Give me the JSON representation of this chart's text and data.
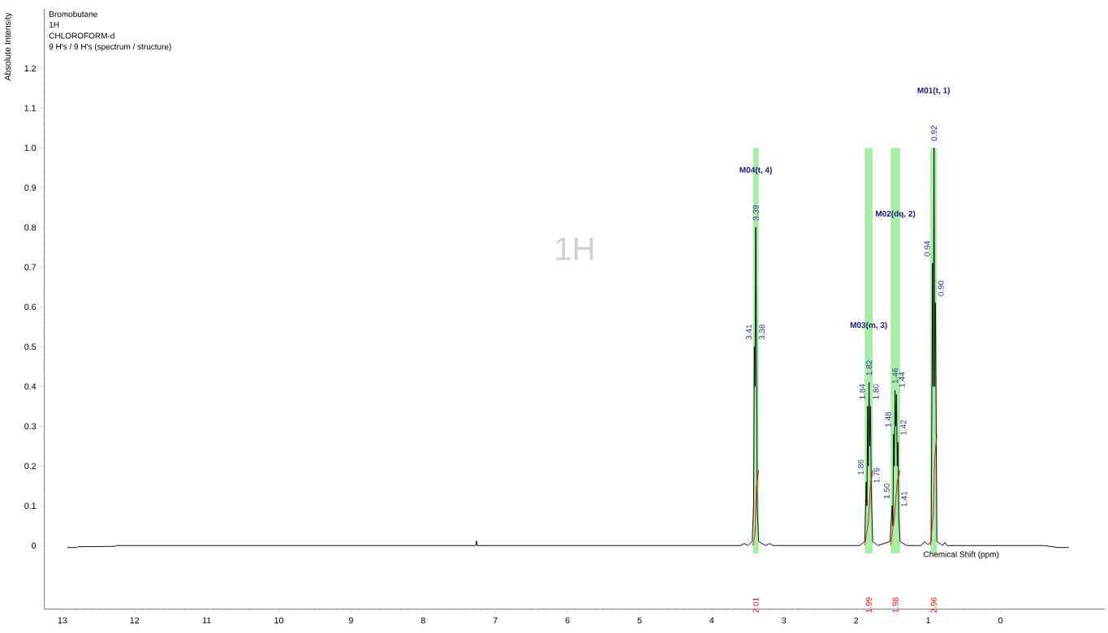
{
  "chart_data": {
    "type": "line",
    "xlabel": "Chemical Shift (ppm)",
    "ylabel": "Absolute Intensity",
    "xlim": [
      13.25,
      -1.45
    ],
    "xticks": [
      13,
      12,
      11,
      10,
      9,
      8,
      7,
      6,
      5,
      4,
      3,
      2,
      1,
      0
    ],
    "ylim": [
      -0.16,
      1.35
    ],
    "yticks": [
      0,
      0.1,
      0.2,
      0.3,
      0.4,
      0.5,
      0.6,
      0.7,
      0.8,
      0.9,
      {
        "value": 1,
        "label": "1.0"
      },
      1.1,
      1.2
    ],
    "series": [
      {
        "color": "#000000",
        "x": [
          12.93,
          12.8,
          12.79,
          12.27,
          12.25,
          7.3,
          7.27,
          7.26,
          7.25,
          3.6,
          3.55,
          3.5,
          3.44,
          3.42,
          3.41,
          3.4,
          3.39,
          3.38,
          3.37,
          3.35,
          3.25,
          3.2,
          3.15,
          1.95,
          1.88,
          1.86,
          1.85,
          1.84,
          1.83,
          1.82,
          1.81,
          1.8,
          1.79,
          1.77,
          1.7,
          1.53,
          1.5,
          1.49,
          1.48,
          1.47,
          1.46,
          1.45,
          1.44,
          1.43,
          1.42,
          1.41,
          1.39,
          1.3,
          1.1,
          1.05,
          1.0,
          0.96,
          0.94,
          0.93,
          0.92,
          0.91,
          0.9,
          0.88,
          0.8,
          0.77,
          0.74,
          -0.6,
          -0.8,
          -0.95
        ],
        "values": [
          -0.005,
          -0.005,
          -0.003,
          -0.002,
          0,
          0,
          0,
          0.012,
          0,
          0,
          0.005,
          0,
          0.01,
          0.1,
          0.5,
          0.4,
          0.8,
          0.5,
          0.1,
          0.01,
          0,
          0.005,
          0,
          0,
          0.01,
          0.16,
          0.1,
          0.35,
          0.2,
          0.41,
          0.25,
          0.35,
          0.14,
          0.01,
          0,
          0.01,
          0.1,
          0.05,
          0.28,
          0.2,
          0.39,
          0.3,
          0.38,
          0.2,
          0.26,
          0.08,
          0.01,
          0,
          0,
          0.01,
          0.002,
          0.01,
          0.71,
          0.4,
          1.0,
          0.4,
          0.61,
          0.01,
          0,
          0.008,
          0,
          0,
          -0.005,
          -0.005
        ]
      },
      {
        "color": "#ff0000",
        "x": [
          3.43,
          3.4,
          3.38,
          3.35
        ],
        "values": [
          0,
          0.03,
          0.15,
          0.19
        ]
      },
      {
        "color": "#ff0000",
        "x": [
          1.88,
          1.83,
          1.8,
          1.77
        ],
        "values": [
          0,
          0.06,
          0.15,
          0.19
        ]
      },
      {
        "color": "#ff0000",
        "x": [
          1.52,
          1.47,
          1.43,
          1.39
        ],
        "values": [
          0,
          0.07,
          0.16,
          0.19
        ]
      },
      {
        "color": "#ff0000",
        "x": [
          0.97,
          0.93,
          0.91,
          0.88
        ],
        "values": [
          0,
          0.08,
          0.22,
          0.28
        ]
      }
    ],
    "bands": [
      {
        "axis": "x",
        "from": 3.43,
        "to": 3.35,
        "color": "#a6f0a6"
      },
      {
        "axis": "x",
        "from": 1.88,
        "to": 1.77,
        "color": "#a6f0a6"
      },
      {
        "axis": "x",
        "from": 1.52,
        "to": 1.39,
        "color": "#a6f0a6"
      },
      {
        "axis": "x",
        "from": 0.97,
        "to": 0.88,
        "color": "#a6f0a6"
      }
    ],
    "annotations": [
      "Bromobutane",
      "1H",
      "CHLOROFORM-d",
      "9 H's / 9 H's (spectrum / structure)",
      "1H",
      {
        "text": "3.41",
        "x": 3.41,
        "y": 0.5
      },
      {
        "text": "3.39",
        "x": 3.39,
        "y": 0.8
      },
      {
        "text": "3.38",
        "x": 3.38,
        "y": 0.5
      },
      {
        "text": "1.86",
        "x": 1.86,
        "y": 0.16
      },
      {
        "text": "1.84",
        "x": 1.84,
        "y": 0.35
      },
      {
        "text": "1.82",
        "x": 1.82,
        "y": 0.41
      },
      {
        "text": "1.80",
        "x": 1.8,
        "y": 0.35
      },
      {
        "text": "1.79",
        "x": 1.79,
        "y": 0.14
      },
      {
        "text": "1.50",
        "x": 1.5,
        "y": 0.1
      },
      {
        "text": "1.48",
        "x": 1.48,
        "y": 0.28
      },
      {
        "text": "1.46",
        "x": 1.46,
        "y": 0.39
      },
      {
        "text": "1.44",
        "x": 1.44,
        "y": 0.38
      },
      {
        "text": "1.42",
        "x": 1.42,
        "y": 0.26
      },
      {
        "text": "1.41",
        "x": 1.41,
        "y": 0.08
      },
      {
        "text": "0.94",
        "x": 0.94,
        "y": 0.71
      },
      {
        "text": "0.92",
        "x": 0.92,
        "y": 1.0
      },
      {
        "text": "0.90",
        "x": 0.9,
        "y": 0.61
      },
      "M04(t, 4)",
      "M03(m, 3)",
      "M02(dq, 2)",
      "M01(t, 1)",
      "2.01",
      "1.99",
      "1.98",
      "2.96"
    ]
  }
}
